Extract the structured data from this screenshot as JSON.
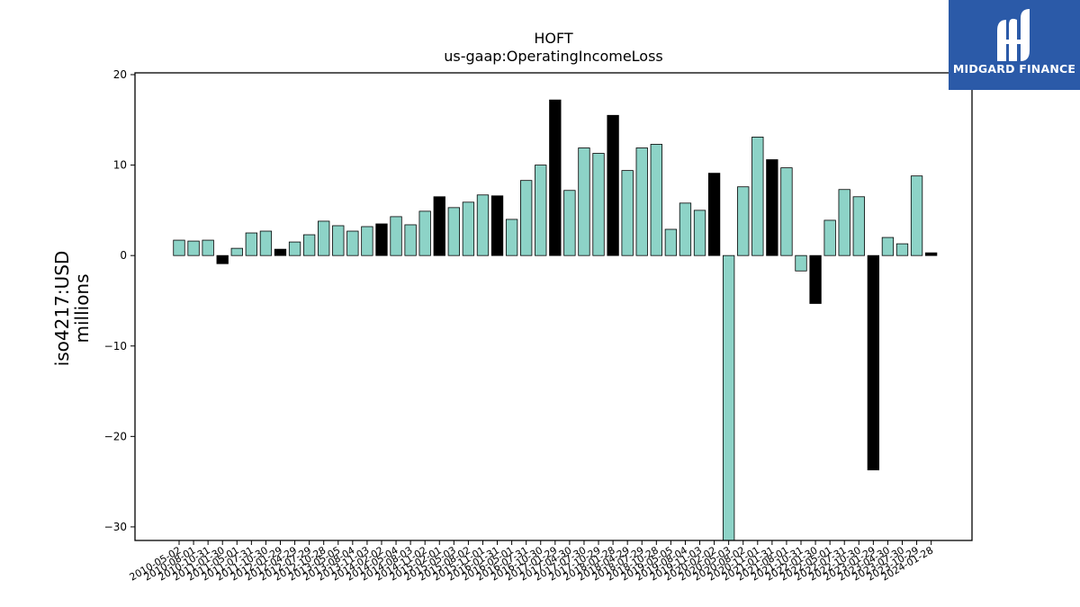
{
  "chart_data": {
    "type": "bar",
    "title": "HOFT",
    "subtitle": "us-gaap:OperatingIncomeLoss",
    "ylabel": "iso4217:USD",
    "ylabel2": "millions",
    "xlabel": "",
    "ylim": [
      -31.5,
      20.2
    ],
    "yticks": [
      20,
      10,
      0,
      -10,
      -20,
      -30
    ],
    "grid": false,
    "colors": {
      "normal": "#8dd3c7",
      "highlight": "#000000",
      "edge": "#000000"
    },
    "categories": [
      "2010-05-02",
      "2010-08-01",
      "2010-10-31",
      "2011-01-30",
      "2011-05-01",
      "2011-07-31",
      "2011-10-30",
      "2012-01-29",
      "2012-04-29",
      "2012-07-29",
      "2012-10-28",
      "2013-05-05",
      "2013-08-04",
      "2013-11-03",
      "2014-02-02",
      "2014-05-04",
      "2014-08-03",
      "2014-11-02",
      "2015-02-01",
      "2015-05-03",
      "2015-08-02",
      "2015-11-01",
      "2016-01-31",
      "2016-05-01",
      "2016-07-31",
      "2016-10-30",
      "2017-01-29",
      "2017-04-30",
      "2017-07-30",
      "2017-10-29",
      "2018-01-28",
      "2018-04-29",
      "2018-07-29",
      "2018-10-28",
      "2019-05-05",
      "2019-08-04",
      "2019-11-03",
      "2020-02-02",
      "2020-05-03",
      "2020-08-02",
      "2020-11-01",
      "2021-01-31",
      "2021-08-01",
      "2021-10-31",
      "2022-01-30",
      "2022-05-01",
      "2022-07-31",
      "2022-10-30",
      "2023-01-29",
      "2023-04-30",
      "2023-07-30",
      "2023-10-29",
      "2024-01-28"
    ],
    "values": [
      1.7,
      1.6,
      1.7,
      -0.9,
      0.8,
      2.5,
      2.7,
      0.7,
      1.5,
      2.3,
      3.8,
      3.3,
      2.7,
      3.2,
      3.5,
      4.3,
      3.4,
      4.9,
      6.5,
      5.3,
      5.9,
      6.7,
      6.6,
      4.0,
      8.3,
      10.0,
      17.2,
      7.2,
      11.9,
      11.3,
      15.5,
      9.4,
      11.9,
      12.3,
      2.9,
      5.8,
      5.0,
      9.1,
      -31.5,
      7.6,
      13.1,
      10.6,
      9.7,
      -1.7,
      -5.3,
      3.9,
      7.3,
      6.5,
      -23.7,
      2.0,
      1.3,
      8.8,
      0.3
    ],
    "highlight": [
      false,
      false,
      false,
      true,
      false,
      false,
      false,
      true,
      false,
      false,
      false,
      false,
      false,
      false,
      true,
      false,
      false,
      false,
      true,
      false,
      false,
      false,
      true,
      false,
      false,
      false,
      true,
      false,
      false,
      false,
      true,
      false,
      false,
      false,
      false,
      false,
      false,
      true,
      false,
      false,
      false,
      true,
      false,
      false,
      true,
      false,
      false,
      false,
      true,
      false,
      false,
      false,
      true
    ]
  },
  "logo": {
    "text": "MIDGARD FINANCE"
  }
}
